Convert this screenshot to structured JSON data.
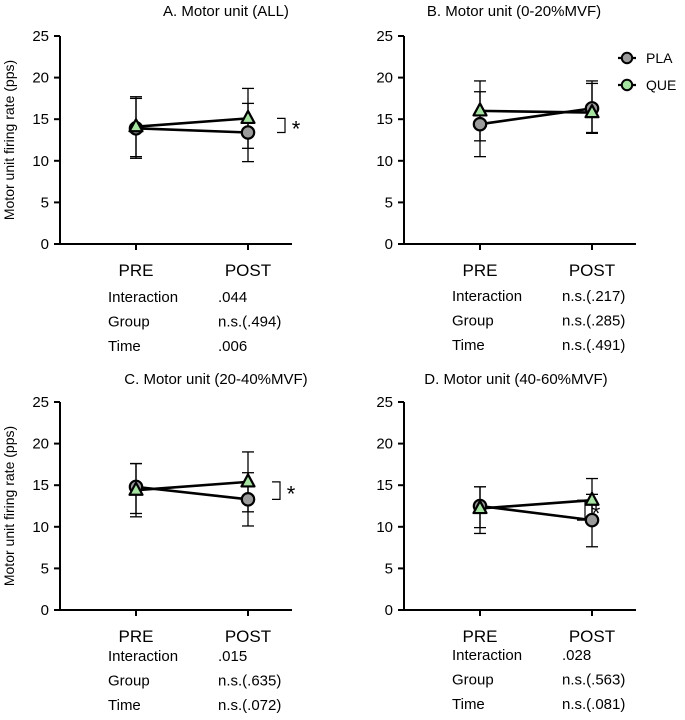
{
  "figure": {
    "y_axis_label": "Motor unit firing rate (pps)",
    "legend": [
      {
        "label": "PLA",
        "marker": "circle",
        "fill": "#9b9b9b"
      },
      {
        "label": "QUE",
        "marker": "triangle",
        "fill": "#a6e3a1"
      }
    ],
    "colors": {
      "line": "#000000",
      "pla_fill": "#9b9b9b",
      "que_fill": "#a6e3a1"
    }
  },
  "chart_data": [
    {
      "type": "line",
      "title": "A. Motor unit (ALL)",
      "categories": [
        "PRE",
        "POST"
      ],
      "ylim": [
        0,
        25
      ],
      "yticks": [
        "0",
        "5",
        "10",
        "15",
        "20",
        "25"
      ],
      "series": [
        {
          "name": "PLA",
          "values": [
            13.9,
            13.4
          ],
          "error_low": [
            10.3,
            9.9
          ],
          "error_high": [
            17.5,
            16.9
          ]
        },
        {
          "name": "QUE",
          "values": [
            14.1,
            15.1
          ],
          "error_low": [
            10.5,
            11.5
          ],
          "error_high": [
            17.7,
            18.7
          ]
        }
      ],
      "significance_marker": "*",
      "stats": [
        {
          "label": "Interaction",
          "value": ".044"
        },
        {
          "label": "Group",
          "value": "n.s.(.494)"
        },
        {
          "label": "Time",
          "value": ".006"
        }
      ]
    },
    {
      "type": "line",
      "title": "B. Motor unit (0-20%MVF)",
      "categories": [
        "PRE",
        "POST"
      ],
      "ylim": [
        0,
        25
      ],
      "yticks": [
        "0",
        "5",
        "10",
        "15",
        "20",
        "25"
      ],
      "series": [
        {
          "name": "PLA",
          "values": [
            14.4,
            16.3
          ],
          "error_low": [
            10.5,
            13.3
          ],
          "error_high": [
            18.3,
            19.3
          ]
        },
        {
          "name": "QUE",
          "values": [
            16.0,
            15.8
          ],
          "error_low": [
            12.4,
            13.4
          ],
          "error_high": [
            19.6,
            19.6
          ]
        }
      ],
      "significance_marker": "",
      "stats": [
        {
          "label": "Interaction",
          "value": "n.s.(.217)"
        },
        {
          "label": "Group",
          "value": "n.s.(.285)"
        },
        {
          "label": "Time",
          "value": "n.s.(.491)"
        }
      ]
    },
    {
      "type": "line",
      "title": "C. Motor unit (20-40%MVF)",
      "categories": [
        "PRE",
        "POST"
      ],
      "ylim": [
        0,
        25
      ],
      "yticks": [
        "0",
        "5",
        "10",
        "15",
        "20",
        "25"
      ],
      "series": [
        {
          "name": "PLA",
          "values": [
            14.8,
            13.3
          ],
          "error_low": [
            11.6,
            10.1
          ],
          "error_high": [
            17.6,
            16.5
          ]
        },
        {
          "name": "QUE",
          "values": [
            14.4,
            15.4
          ],
          "error_low": [
            11.2,
            11.8
          ],
          "error_high": [
            17.6,
            19.0
          ]
        }
      ],
      "significance_marker": "*",
      "stats": [
        {
          "label": "Interaction",
          "value": ".015"
        },
        {
          "label": "Group",
          "value": "n.s.(.635)"
        },
        {
          "label": "Time",
          "value": "n.s.(.072)"
        }
      ]
    },
    {
      "type": "line",
      "title": "D. Motor unit (40-60%MVF)",
      "categories": [
        "PRE",
        "POST"
      ],
      "ylim": [
        0,
        25
      ],
      "yticks": [
        "0",
        "5",
        "10",
        "15",
        "20",
        "25"
      ],
      "series": [
        {
          "name": "PLA",
          "values": [
            12.5,
            10.8
          ],
          "error_low": [
            9.9,
            7.6
          ],
          "error_high": [
            14.8,
            13.9
          ]
        },
        {
          "name": "QUE",
          "values": [
            12.2,
            13.2
          ],
          "error_low": [
            9.2,
            10.6
          ],
          "error_high": [
            14.8,
            15.8
          ]
        }
      ],
      "significance_marker": "*",
      "stats": [
        {
          "label": "Interaction",
          "value": ".028"
        },
        {
          "label": "Group",
          "value": "n.s.(.563)"
        },
        {
          "label": "Time",
          "value": "n.s.(.081)"
        }
      ]
    }
  ]
}
